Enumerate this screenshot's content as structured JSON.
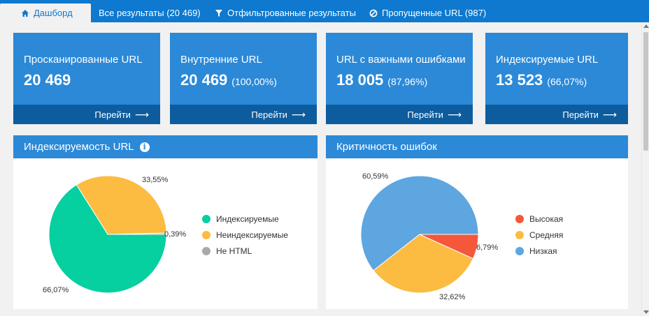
{
  "tabs": [
    {
      "label": "Дашборд",
      "icon": "home-icon",
      "active": true
    },
    {
      "label": "Все результаты (20 469)"
    },
    {
      "label": "Отфильтрованные результаты",
      "icon": "filter-icon"
    },
    {
      "label": "Пропущенные URL (987)",
      "icon": "ban-icon"
    }
  ],
  "cards": [
    {
      "title": "Просканированные URL",
      "value": "20 469",
      "pct": "",
      "link": "Перейти"
    },
    {
      "title": "Внутренние URL",
      "value": "20 469",
      "pct": "(100,00%)",
      "link": "Перейти"
    },
    {
      "title": "URL с важными ошибками",
      "value": "18 005",
      "pct": "(87,96%)",
      "link": "Перейти"
    },
    {
      "title": "Индексируемые URL",
      "value": "13 523",
      "pct": "(66,07%)",
      "link": "Перейти"
    }
  ],
  "colors": {
    "topbar": "#0e79cf",
    "card": "#2b89d8",
    "card_footer": "#0d5c9e",
    "indexable": "#06cfa0",
    "nonindexable": "#fcbc42",
    "nothtml": "#a9a9a9",
    "high": "#f5573b",
    "medium": "#fcbc42",
    "low": "#5da6e0"
  },
  "chart_data": [
    {
      "type": "pie",
      "title": "Индексируемость URL",
      "categories": [
        "Индексируемые",
        "Неиндексируемые",
        "Не HTML"
      ],
      "values": [
        66.07,
        33.55,
        0.39
      ],
      "labels": [
        "66,07%",
        "33,55%",
        "0,39%"
      ],
      "legend": "right"
    },
    {
      "type": "pie",
      "title": "Критичность ошибок",
      "categories": [
        "Высокая",
        "Средняя",
        "Низкая"
      ],
      "values": [
        6.79,
        32.62,
        60.59
      ],
      "labels": [
        "6,79%",
        "32,62%",
        "60,59%"
      ],
      "legend": "right"
    }
  ]
}
